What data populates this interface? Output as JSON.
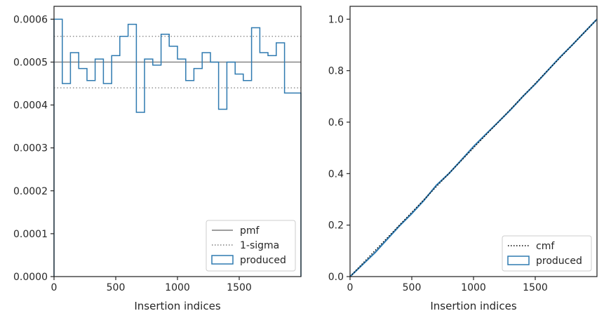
{
  "colors": {
    "hist": "#2f7ab0",
    "pmf_line": "#7f7f7f",
    "sigma_line": "#7f7f7f",
    "cmf_line": "#000000",
    "axes": "#262626",
    "background": "#ffffff"
  },
  "chart_data": [
    {
      "type": "step-histogram",
      "xlabel": "Insertion indices",
      "ylabel": "",
      "xlim": [
        0,
        2000
      ],
      "ylim": [
        0,
        0.00063
      ],
      "xticks": [
        0,
        500,
        1000,
        1500
      ],
      "xtick_labels": [
        "0",
        "500",
        "1000",
        "1500"
      ],
      "yticks": [
        0,
        0.0001,
        0.0002,
        0.0003,
        0.0004,
        0.0005,
        0.0006
      ],
      "ytick_labels": [
        "0.0000",
        "0.0001",
        "0.0002",
        "0.0003",
        "0.0004",
        "0.0005",
        "0.0006"
      ],
      "legend": {
        "position": "lower-right",
        "entries": [
          {
            "label": "pmf",
            "style": "solid-line"
          },
          {
            "label": "1-sigma",
            "style": "dotted-line"
          },
          {
            "label": "produced",
            "style": "hist-box"
          }
        ]
      },
      "pmf": 0.0005,
      "sigma_band": [
        0.00044,
        0.00056
      ],
      "histogram": {
        "name": "produced",
        "bin_edges": [
          0,
          67,
          133,
          200,
          267,
          333,
          400,
          467,
          533,
          600,
          667,
          733,
          800,
          867,
          933,
          1000,
          1067,
          1133,
          1200,
          1267,
          1333,
          1400,
          1467,
          1533,
          1600,
          1667,
          1733,
          1800,
          1867,
          1933,
          2000
        ],
        "values": [
          0.0006,
          0.00045,
          0.000522,
          0.000485,
          0.000457,
          0.000507,
          0.00045,
          0.000515,
          0.00056,
          0.000588,
          0.000383,
          0.000507,
          0.000493,
          0.000565,
          0.000537,
          0.000507,
          0.000457,
          0.000485,
          0.000522,
          0.0005,
          0.00039,
          0.0005,
          0.000472,
          0.000457,
          0.00058,
          0.000522,
          0.000515,
          0.000545,
          0.000428,
          0.000428
        ]
      }
    },
    {
      "type": "line",
      "xlabel": "Insertion indices",
      "ylabel": "",
      "xlim": [
        0,
        2000
      ],
      "ylim": [
        0,
        1.05
      ],
      "xticks": [
        0,
        500,
        1000,
        1500
      ],
      "xtick_labels": [
        "0",
        "500",
        "1000",
        "1500"
      ],
      "yticks": [
        0,
        0.2,
        0.4,
        0.6,
        0.8,
        1.0
      ],
      "ytick_labels": [
        "0.0",
        "0.2",
        "0.4",
        "0.6",
        "0.8",
        "1.0"
      ],
      "legend": {
        "position": "lower-right",
        "entries": [
          {
            "label": "cmf",
            "style": "dotted-line"
          },
          {
            "label": "produced",
            "style": "hist-box"
          }
        ]
      },
      "series": [
        {
          "name": "cmf",
          "x": [
            0,
            2000
          ],
          "y": [
            0,
            1.0
          ]
        },
        {
          "name": "produced",
          "x": [
            0,
            100,
            200,
            300,
            400,
            500,
            600,
            700,
            800,
            900,
            1000,
            1100,
            1200,
            1300,
            1400,
            1500,
            1600,
            1700,
            1800,
            1900,
            2000
          ],
          "y": [
            0,
            0.046,
            0.092,
            0.145,
            0.197,
            0.245,
            0.297,
            0.355,
            0.4,
            0.452,
            0.505,
            0.553,
            0.6,
            0.648,
            0.7,
            0.748,
            0.8,
            0.852,
            0.9,
            0.95,
            1.0
          ]
        }
      ]
    }
  ]
}
